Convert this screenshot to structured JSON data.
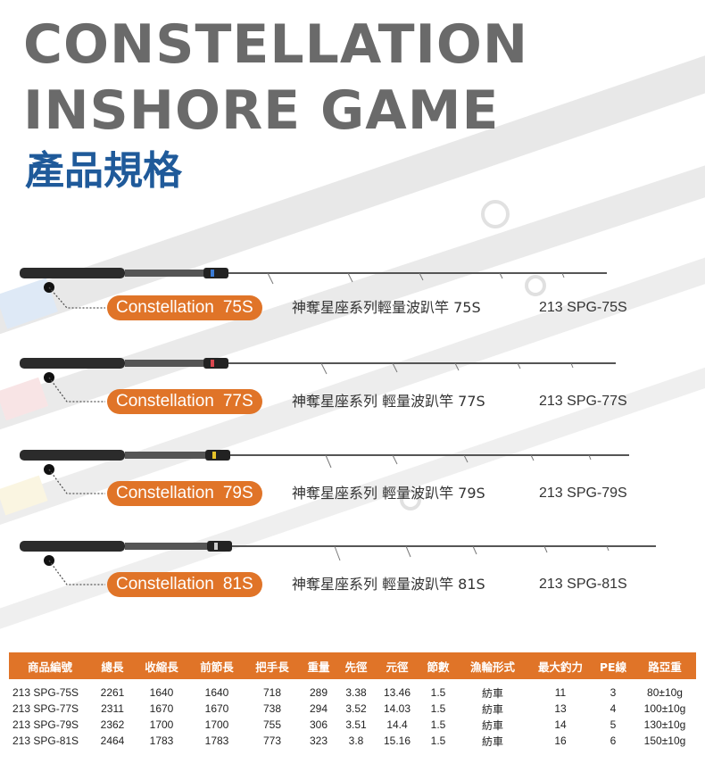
{
  "title": {
    "line1": "CONSTELLATION",
    "line2": "INSHORE GAME",
    "subtitle": "產品規格"
  },
  "colors": {
    "accent": "#e07428",
    "title_gray": "#6a6a6a",
    "subtitle_blue": "#1f5a9a"
  },
  "rods": [
    {
      "label": "Constellation",
      "code": "75S",
      "name_cn": "神奪星座系列輕量波趴竿 75S",
      "sku": "213 SPG-75S",
      "band_color": "#3a7bd5"
    },
    {
      "label": "Constellation",
      "code": "77S",
      "name_cn": "神奪星座系列 輕量波趴竿 77S",
      "sku": "213 SPG-77S",
      "band_color": "#d9474f"
    },
    {
      "label": "Constellation",
      "code": "79S",
      "name_cn": "神奪星座系列 輕量波趴竿 79S",
      "sku": "213 SPG-79S",
      "band_color": "#e6c229"
    },
    {
      "label": "Constellation",
      "code": "81S",
      "name_cn": "神奪星座系列 輕量波趴竿 81S",
      "sku": "213 SPG-81S",
      "band_color": "#cccccc"
    }
  ],
  "spec_table": {
    "headers": [
      "商品編號",
      "總長",
      "收縮長",
      "前節長",
      "把手長",
      "重量",
      "先徑",
      "元徑",
      "節數",
      "漁輪形式",
      "最大釣力",
      "PE線",
      "路亞重"
    ],
    "rows": [
      [
        "213 SPG-75S",
        "2261",
        "1640",
        "1640",
        "718",
        "289",
        "3.38",
        "13.46",
        "1.5",
        "紡車",
        "11",
        "3",
        "80±10g"
      ],
      [
        "213 SPG-77S",
        "2311",
        "1670",
        "1670",
        "738",
        "294",
        "3.52",
        "14.03",
        "1.5",
        "紡車",
        "13",
        "4",
        "100±10g"
      ],
      [
        "213 SPG-79S",
        "2362",
        "1700",
        "1700",
        "755",
        "306",
        "3.51",
        "14.4",
        "1.5",
        "紡車",
        "14",
        "5",
        "130±10g"
      ],
      [
        "213 SPG-81S",
        "2464",
        "1783",
        "1783",
        "773",
        "323",
        "3.8",
        "15.16",
        "1.5",
        "紡車",
        "16",
        "6",
        "150±10g"
      ]
    ]
  }
}
